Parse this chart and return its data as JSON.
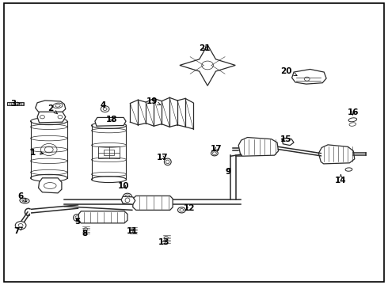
{
  "bg_color": "#ffffff",
  "border_color": "#000000",
  "line_color": "#2a2a2a",
  "label_color": "#000000",
  "label_fontsize": 7.5,
  "fig_width": 4.9,
  "fig_height": 3.6,
  "dpi": 100,
  "label_positions": {
    "1": [
      0.083,
      0.465,
      0.118,
      0.46
    ],
    "2": [
      0.13,
      0.62,
      0.148,
      0.6
    ],
    "3": [
      0.033,
      0.638,
      0.058,
      0.636
    ],
    "4": [
      0.265,
      0.63,
      0.272,
      0.615
    ],
    "5": [
      0.198,
      0.222,
      0.208,
      0.238
    ],
    "6": [
      0.052,
      0.31,
      0.068,
      0.29
    ],
    "7": [
      0.042,
      0.188,
      0.058,
      0.202
    ],
    "8": [
      0.218,
      0.178,
      0.228,
      0.192
    ],
    "9": [
      0.588,
      0.398,
      0.598,
      0.418
    ],
    "10": [
      0.318,
      0.348,
      0.33,
      0.33
    ],
    "11": [
      0.34,
      0.188,
      0.348,
      0.202
    ],
    "12": [
      0.488,
      0.268,
      0.472,
      0.258
    ],
    "13": [
      0.422,
      0.148,
      0.432,
      0.162
    ],
    "14": [
      0.878,
      0.365,
      0.88,
      0.388
    ],
    "15": [
      0.738,
      0.512,
      0.718,
      0.512
    ],
    "16": [
      0.912,
      0.605,
      0.908,
      0.588
    ],
    "17a": [
      0.418,
      0.448,
      0.432,
      0.438
    ],
    "17b": [
      0.558,
      0.478,
      0.548,
      0.465
    ],
    "18": [
      0.288,
      0.582,
      0.295,
      0.565
    ],
    "19": [
      0.392,
      0.645,
      0.415,
      0.632
    ],
    "20": [
      0.738,
      0.752,
      0.768,
      0.735
    ],
    "21": [
      0.528,
      0.832,
      0.535,
      0.818
    ]
  }
}
